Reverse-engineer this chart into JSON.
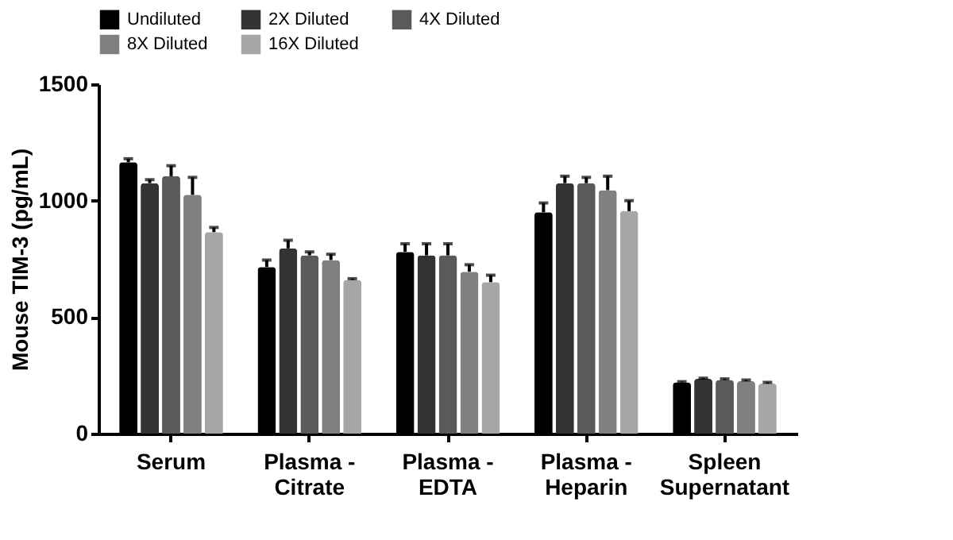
{
  "chart_data": {
    "type": "bar",
    "ylabel": "Mouse TIM-3 (pg/mL)",
    "categories": [
      "Serum",
      "Plasma -\nCitrate",
      "Plasma -\nEDTA",
      "Plasma -\nHeparin",
      "Spleen\nSupernatant"
    ],
    "series": [
      {
        "name": "Undiluted",
        "color": "#000000",
        "values": [
          1165,
          715,
          780,
          950,
          220
        ],
        "errors": [
          15,
          30,
          35,
          40,
          3
        ]
      },
      {
        "name": "2X Diluted",
        "color": "#333333",
        "values": [
          1075,
          795,
          765,
          1075,
          235
        ],
        "errors": [
          15,
          35,
          50,
          30,
          3
        ]
      },
      {
        "name": "4X Diluted",
        "color": "#5a5a5a",
        "values": [
          1105,
          765,
          765,
          1075,
          230
        ],
        "errors": [
          45,
          15,
          50,
          25,
          5
        ]
      },
      {
        "name": "8X Diluted",
        "color": "#808080",
        "values": [
          1025,
          745,
          695,
          1045,
          225
        ],
        "errors": [
          75,
          25,
          30,
          60,
          5
        ]
      },
      {
        "name": "16X Diluted",
        "color": "#a6a6a6",
        "values": [
          865,
          660,
          650,
          955,
          215
        ],
        "errors": [
          20,
          5,
          30,
          45,
          5
        ]
      }
    ],
    "ylim": [
      0,
      1500
    ],
    "yticks": [
      0,
      500,
      1000,
      1500
    ],
    "grid": false,
    "legend": "top"
  }
}
